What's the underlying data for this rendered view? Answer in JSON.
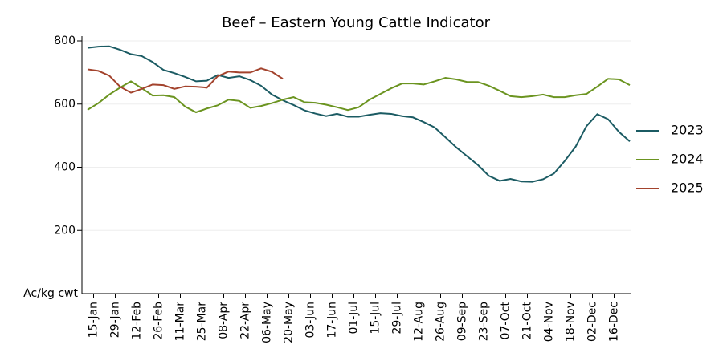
{
  "chart_data": {
    "type": "line",
    "title": "Beef – Eastern Young Cattle Indicator",
    "ylabel": "Ac/kg cwt",
    "categories": [
      null,
      "15-Jan",
      null,
      "29-Jan",
      null,
      "12-Feb",
      null,
      "26-Feb",
      null,
      "11-Mar",
      null,
      "25-Mar",
      null,
      "08-Apr",
      null,
      "22-Apr",
      null,
      "06-May",
      null,
      "20-May",
      null,
      "03-Jun",
      null,
      "17-Jun",
      null,
      "01-Jul",
      null,
      "15-Jul",
      null,
      "29-Jul",
      null,
      "12-Aug",
      null,
      "26-Aug",
      null,
      "09-Sep",
      null,
      "23-Sep",
      null,
      "07-Oct",
      null,
      "21-Oct",
      null,
      "04-Nov",
      null,
      "18-Nov",
      null,
      "02-Dec",
      null,
      "16-Dec",
      null
    ],
    "series": [
      {
        "name": "2023",
        "color": "#1b5b63",
        "values": [
          778,
          782,
          783,
          772,
          758,
          752,
          733,
          708,
          698,
          686,
          672,
          674,
          692,
          683,
          688,
          676,
          658,
          630,
          612,
          597,
          580,
          570,
          562,
          569,
          560,
          560,
          566,
          571,
          569,
          562,
          558,
          543,
          526,
          495,
          463,
          435,
          407,
          373,
          357,
          363,
          355,
          354,
          362,
          380,
          420,
          465,
          530,
          568,
          552,
          512,
          482
        ]
      },
      {
        "name": "2024",
        "color": "#6b9420",
        "values": [
          582,
          603,
          630,
          652,
          672,
          650,
          627,
          628,
          622,
          592,
          574,
          586,
          596,
          614,
          610,
          588,
          594,
          603,
          614,
          622,
          606,
          604,
          598,
          590,
          581,
          590,
          614,
          632,
          650,
          665,
          665,
          662,
          672,
          683,
          678,
          670,
          670,
          658,
          642,
          625,
          622,
          625,
          630,
          622,
          622,
          628,
          632,
          655,
          680,
          678,
          660
        ]
      },
      {
        "name": "2025",
        "color": "#a3432d",
        "values": [
          710,
          705,
          690,
          655,
          636,
          648,
          662,
          660,
          648,
          656,
          655,
          652,
          688,
          703,
          700,
          700,
          713,
          702,
          680,
          null,
          null,
          null,
          null,
          null,
          null,
          null,
          null,
          null,
          null,
          null,
          null,
          null,
          null,
          null,
          null,
          null,
          null,
          null,
          null,
          null,
          null,
          null,
          null,
          null,
          null,
          null,
          null,
          null,
          null,
          null,
          null
        ]
      }
    ],
    "ylim": [
      0,
      800
    ],
    "yticks": [
      200,
      400,
      600,
      800
    ],
    "grid": true,
    "legend": "right"
  }
}
